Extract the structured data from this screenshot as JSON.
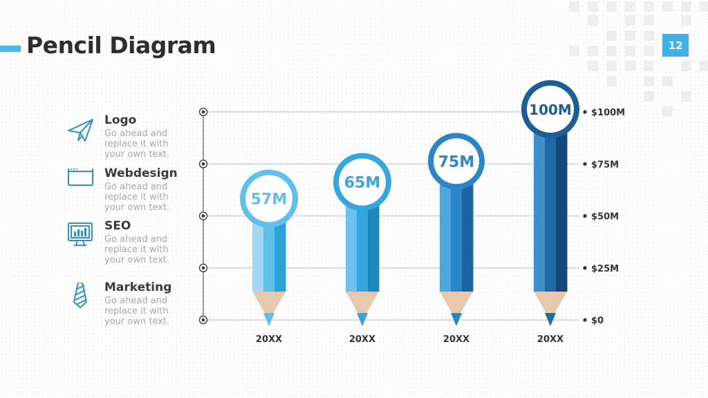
{
  "slide": {
    "title": "Pencil Diagram",
    "page_number": "12",
    "accent_color": "#3eb0ea"
  },
  "legend": [
    {
      "title": "Logo",
      "desc": "Go ahead and replace it with your own text.",
      "icon": "paper-plane-icon"
    },
    {
      "title": "Webdesign",
      "desc": "Go ahead and replace it with your own text.",
      "icon": "browser-window-icon"
    },
    {
      "title": "SEO",
      "desc": "Go ahead and replace it with your own text.",
      "icon": "monitor-chart-icon"
    },
    {
      "title": "Marketing",
      "desc": "Go ahead and replace it with your own text.",
      "icon": "necktie-icon"
    }
  ],
  "chart_data": {
    "type": "bar",
    "style": "pencil",
    "categories": [
      "20XX",
      "20XX",
      "20XX",
      "20XX"
    ],
    "values": [
      57,
      65,
      75,
      100
    ],
    "value_labels": [
      "57M",
      "65M",
      "75M",
      "100M"
    ],
    "y_ticks": [
      0,
      25,
      50,
      75,
      100
    ],
    "y_tick_labels": [
      "$0",
      "$25M",
      "$50M",
      "$75M",
      "$100M"
    ],
    "ylim": [
      0,
      100
    ],
    "grid": true,
    "colors": [
      [
        "#a3d8f3",
        "#5ec0ec",
        "#2ba3dd"
      ],
      [
        "#6ec3ed",
        "#35a7e0",
        "#1e87bd"
      ],
      [
        "#4ea6dc",
        "#2a86c4",
        "#1a64a0"
      ],
      [
        "#3f8fcb",
        "#1f6aa5",
        "#12497c"
      ]
    ],
    "ring_colors": [
      "#5ec0ec",
      "#35a7e0",
      "#2a86c4",
      "#1a5f98"
    ],
    "label_colors": [
      "#5ec0ec",
      "#35a7e0",
      "#2a86c4",
      "#1a5f98"
    ]
  }
}
